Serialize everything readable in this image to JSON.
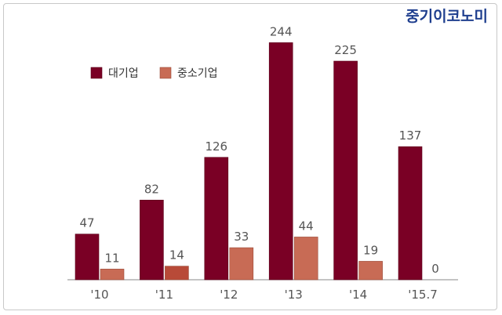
{
  "brand": "중기이코노미",
  "colors": {
    "large": "#7a0025",
    "small": "#c86b55",
    "small_2011": "#b84a38",
    "axis": "#888888"
  },
  "chart_data": {
    "type": "bar",
    "categories": [
      "'10",
      "'11",
      "'12",
      "'13",
      "'14",
      "'15.7"
    ],
    "series": [
      {
        "name": "대기업",
        "values": [
          47,
          82,
          126,
          244,
          225,
          137
        ]
      },
      {
        "name": "중소기업",
        "values": [
          11,
          14,
          33,
          44,
          19,
          0
        ]
      }
    ],
    "ylim": [
      0,
      250
    ],
    "legend": "top-left",
    "grid": false
  }
}
